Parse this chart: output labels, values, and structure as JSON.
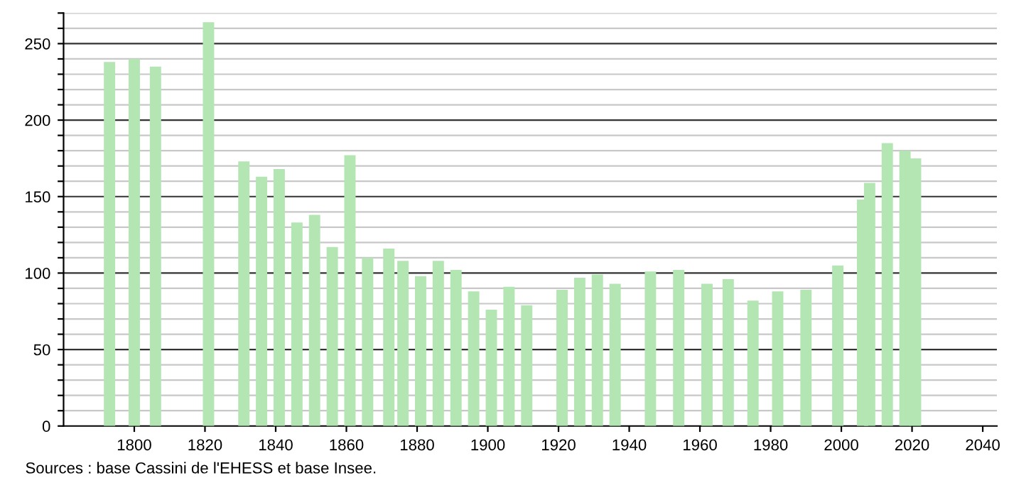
{
  "chart_data": {
    "type": "bar",
    "x": [
      1793,
      1800,
      1806,
      1821,
      1831,
      1836,
      1841,
      1846,
      1851,
      1856,
      1861,
      1866,
      1872,
      1876,
      1881,
      1886,
      1891,
      1896,
      1901,
      1906,
      1911,
      1921,
      1926,
      1931,
      1936,
      1946,
      1954,
      1962,
      1968,
      1975,
      1982,
      1990,
      1999,
      2006,
      2008,
      2013,
      2018,
      2021
    ],
    "values": [
      238,
      240,
      235,
      264,
      173,
      163,
      168,
      133,
      138,
      117,
      177,
      110,
      116,
      108,
      98,
      108,
      102,
      88,
      76,
      91,
      79,
      89,
      97,
      99,
      93,
      101,
      102,
      93,
      96,
      82,
      88,
      89,
      105,
      148,
      159,
      185,
      180,
      175
    ],
    "color": "#b3e6b3",
    "xlim": [
      1780,
      2044
    ],
    "xticks": [
      1800,
      1820,
      1840,
      1860,
      1880,
      1900,
      1920,
      1940,
      1960,
      1980,
      2000,
      2020,
      2040
    ],
    "ylim": [
      0,
      270
    ],
    "yticks": [
      0,
      {
        "value": 10,
        "label": null
      },
      {
        "value": 20,
        "label": null
      },
      {
        "value": 30,
        "label": null
      },
      {
        "value": 40,
        "label": null
      },
      50,
      {
        "value": 60,
        "label": null
      },
      {
        "value": 70,
        "label": null
      },
      {
        "value": 80,
        "label": null
      },
      {
        "value": 90,
        "label": null
      },
      100,
      {
        "value": 110,
        "label": null
      },
      {
        "value": 120,
        "label": null
      },
      {
        "value": 130,
        "label": null
      },
      {
        "value": 140,
        "label": null
      },
      150,
      {
        "value": 160,
        "label": null
      },
      {
        "value": 170,
        "label": null
      },
      {
        "value": 180,
        "label": null
      },
      {
        "value": 190,
        "label": null
      },
      200,
      {
        "value": 210,
        "label": null
      },
      {
        "value": 220,
        "label": null
      },
      {
        "value": 230,
        "label": null
      },
      {
        "value": 240,
        "label": null
      },
      250,
      {
        "value": 260,
        "label": null
      },
      {
        "value": 270,
        "label": null
      }
    ],
    "grid": "y",
    "annotations": [
      "Sources : base Cassini de l'EHESS et base Insee."
    ]
  }
}
